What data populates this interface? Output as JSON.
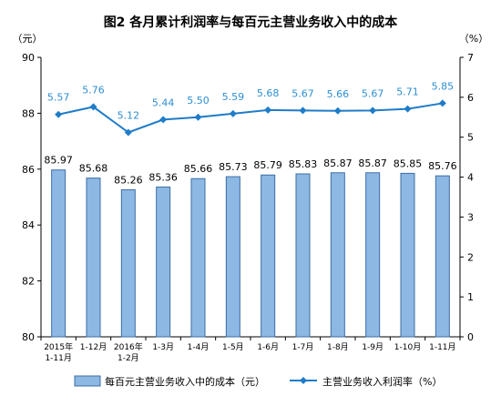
{
  "chart_data": {
    "type": "bar+line",
    "title": "图2  各月累计利润率与每百元主营业务收入中的成本",
    "y_left_unit": "（元）",
    "y_right_unit": "（%）",
    "y_left_lim": [
      80,
      90
    ],
    "y_left_ticks": [
      "80",
      "82",
      "84",
      "86",
      "88",
      "90"
    ],
    "y_right_lim": [
      0,
      7
    ],
    "y_right_ticks": [
      "0",
      "1",
      "2",
      "3",
      "4",
      "5",
      "6",
      "7"
    ],
    "categories": [
      [
        "2015年",
        "1-11月"
      ],
      [
        "1-12月"
      ],
      [
        "2016年",
        "1-2月"
      ],
      [
        "1-3月"
      ],
      [
        "1-4月"
      ],
      [
        "1-5月"
      ],
      [
        "1-6月"
      ],
      [
        "1-7月"
      ],
      [
        "1-8月"
      ],
      [
        "1-9月"
      ],
      [
        "1-10月"
      ],
      [
        "1-11月"
      ]
    ],
    "series": [
      {
        "name": "每百元主营业务收入中的成本（元）",
        "kind": "bar",
        "axis": "left",
        "values": [
          85.97,
          85.68,
          85.26,
          85.36,
          85.66,
          85.73,
          85.79,
          85.83,
          85.87,
          85.87,
          85.85,
          85.76
        ],
        "labels": [
          "85.97",
          "85.68",
          "85.26",
          "85.36",
          "85.66",
          "85.73",
          "85.79",
          "85.83",
          "85.87",
          "85.87",
          "85.85",
          "85.76"
        ]
      },
      {
        "name": "主营业务收入利润率（%）",
        "kind": "line",
        "axis": "right",
        "values": [
          5.57,
          5.76,
          5.12,
          5.44,
          5.5,
          5.59,
          5.68,
          5.67,
          5.66,
          5.67,
          5.71,
          5.85
        ],
        "labels": [
          "5.57",
          "5.76",
          "5.12",
          "5.44",
          "5.50",
          "5.59",
          "5.68",
          "5.67",
          "5.66",
          "5.67",
          "5.71",
          "5.85"
        ]
      }
    ],
    "grid": false,
    "legend_position": "bottom",
    "colors": {
      "bar_fill": "#8db8e4",
      "bar_stroke": "#3a6ea5",
      "line": "#1f7cc8",
      "line_label": "#2e8ed1"
    }
  }
}
